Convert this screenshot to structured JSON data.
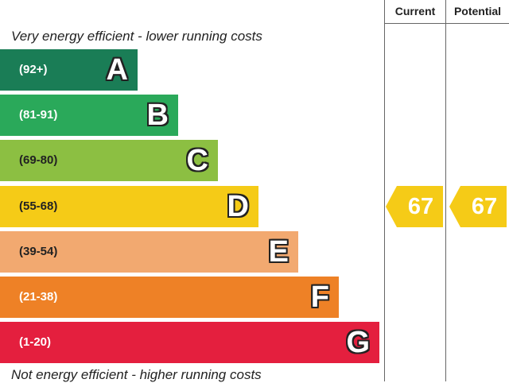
{
  "header": {
    "current_label": "Current",
    "potential_label": "Potential"
  },
  "captions": {
    "top": "Very energy efficient - lower running costs",
    "bottom": "Not energy efficient - higher running costs"
  },
  "chart_data": {
    "type": "bar",
    "categories": [
      "A",
      "B",
      "C",
      "D",
      "E",
      "F",
      "G"
    ],
    "ranges": [
      "(92+)",
      "(81-91)",
      "(69-80)",
      "(55-68)",
      "(39-54)",
      "(21-38)",
      "(1-20)"
    ],
    "colors": [
      "#1a7d56",
      "#2aa95a",
      "#8cbf42",
      "#f5cb17",
      "#f2a970",
      "#ee8126",
      "#e41f3e"
    ],
    "current": {
      "value": 67,
      "band": "D"
    },
    "potential": {
      "value": 67,
      "band": "D"
    },
    "rating_color": "#f5cb17"
  }
}
